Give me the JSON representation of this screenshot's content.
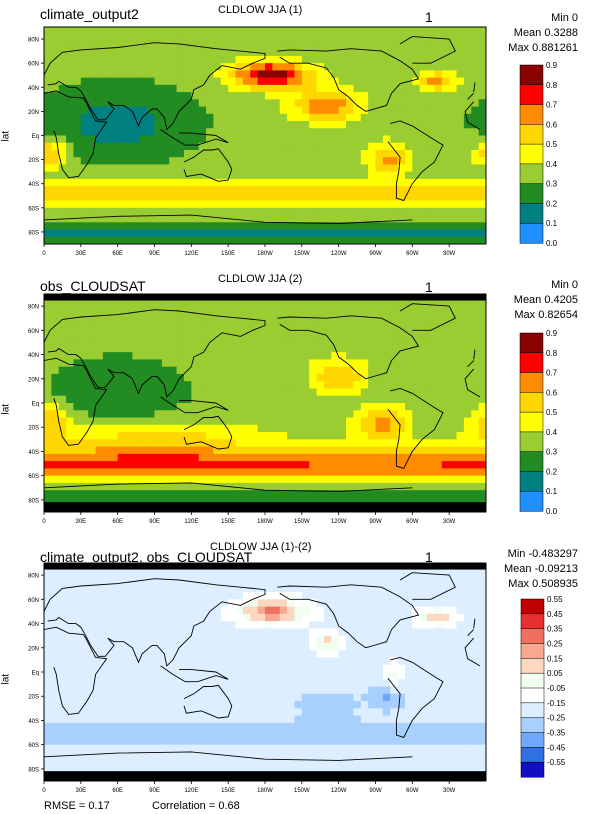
{
  "chart_data": [
    {
      "type": "heatmap",
      "panel_title": "climate_output2",
      "variable_title": "CLDLOW JJA (1)",
      "panel_number": "1",
      "stats": {
        "min": "Min 0",
        "mean": "Mean 0.3288",
        "max": "Max 0.881261"
      },
      "ylabel": "lat",
      "x_ticks": [
        "0",
        "30E",
        "60E",
        "90E",
        "120E",
        "150E",
        "180W",
        "150W",
        "120W",
        "90W",
        "60W",
        "30W"
      ],
      "y_ticks": [
        "80N",
        "60N",
        "40N",
        "20N",
        "Eq",
        "20S",
        "40S",
        "60S",
        "80S"
      ],
      "colorbar_labels": [
        "0.9",
        "0.8",
        "0.7",
        "0.6",
        "0.5",
        "0.4",
        "0.3",
        "0.2",
        "0.1",
        "0.0"
      ],
      "colorbar_colors": [
        "#8b0000",
        "#ff0000",
        "#ff8c00",
        "#ffd700",
        "#ffff00",
        "#9acd32",
        "#228b22",
        "#008080",
        "#1e90ff",
        "#8a2be2"
      ],
      "field": "model"
    },
    {
      "type": "heatmap",
      "panel_title": "obs_CLOUDSAT",
      "variable_title": "CLDLOW JJA (2)",
      "panel_number": "1",
      "stats": {
        "min": "Min 0",
        "mean": "Mean 0.4205",
        "max": "Max 0.82654"
      },
      "ylabel": "lat",
      "x_ticks": [
        "0",
        "30E",
        "60E",
        "90E",
        "120E",
        "150E",
        "180W",
        "150W",
        "120W",
        "90W",
        "60W",
        "30W"
      ],
      "y_ticks": [
        "80N",
        "60N",
        "40N",
        "20N",
        "Eq",
        "20S",
        "40S",
        "60S",
        "80S"
      ],
      "colorbar_labels": [
        "0.9",
        "0.8",
        "0.7",
        "0.6",
        "0.5",
        "0.4",
        "0.3",
        "0.2",
        "0.1",
        "0.0"
      ],
      "colorbar_colors": [
        "#8b0000",
        "#ff0000",
        "#ff8c00",
        "#ffd700",
        "#ffff00",
        "#9acd32",
        "#228b22",
        "#008080",
        "#1e90ff",
        "#8a2be2"
      ],
      "field": "obs"
    },
    {
      "type": "heatmap",
      "panel_title": "climate_output2, obs_CLOUDSAT",
      "variable_title": "CLDLOW JJA (1)-(2)",
      "panel_number": "1",
      "stats": {
        "min": "Min -0.483297",
        "mean": "Mean -0.09213",
        "max": "Max 0.508935"
      },
      "ylabel": "lat",
      "x_ticks": [
        "0",
        "30E",
        "60E",
        "90E",
        "120E",
        "150E",
        "180W",
        "150W",
        "120W",
        "90W",
        "60W",
        "30W"
      ],
      "y_ticks": [
        "80N",
        "60N",
        "40N",
        "20N",
        "Eq",
        "20S",
        "40S",
        "60S",
        "80S"
      ],
      "colorbar_labels": [
        "0.55",
        "0.45",
        "0.35",
        "0.25",
        "0.15",
        "0.05",
        "-0.05",
        "-0.15",
        "-0.25",
        "-0.35",
        "-0.45",
        "-0.55"
      ],
      "colorbar_colors": [
        "#c00000",
        "#e83030",
        "#f07060",
        "#f8a890",
        "#fcd8c0",
        "#f0fff0",
        "#ffffff",
        "#dceeff",
        "#a8d0ff",
        "#70a8ff",
        "#3070e0",
        "#1010c0"
      ],
      "field": "diff"
    }
  ],
  "footer": {
    "rmse": "RMSE = 0.17",
    "correlation": "Correlation = 0.68"
  }
}
